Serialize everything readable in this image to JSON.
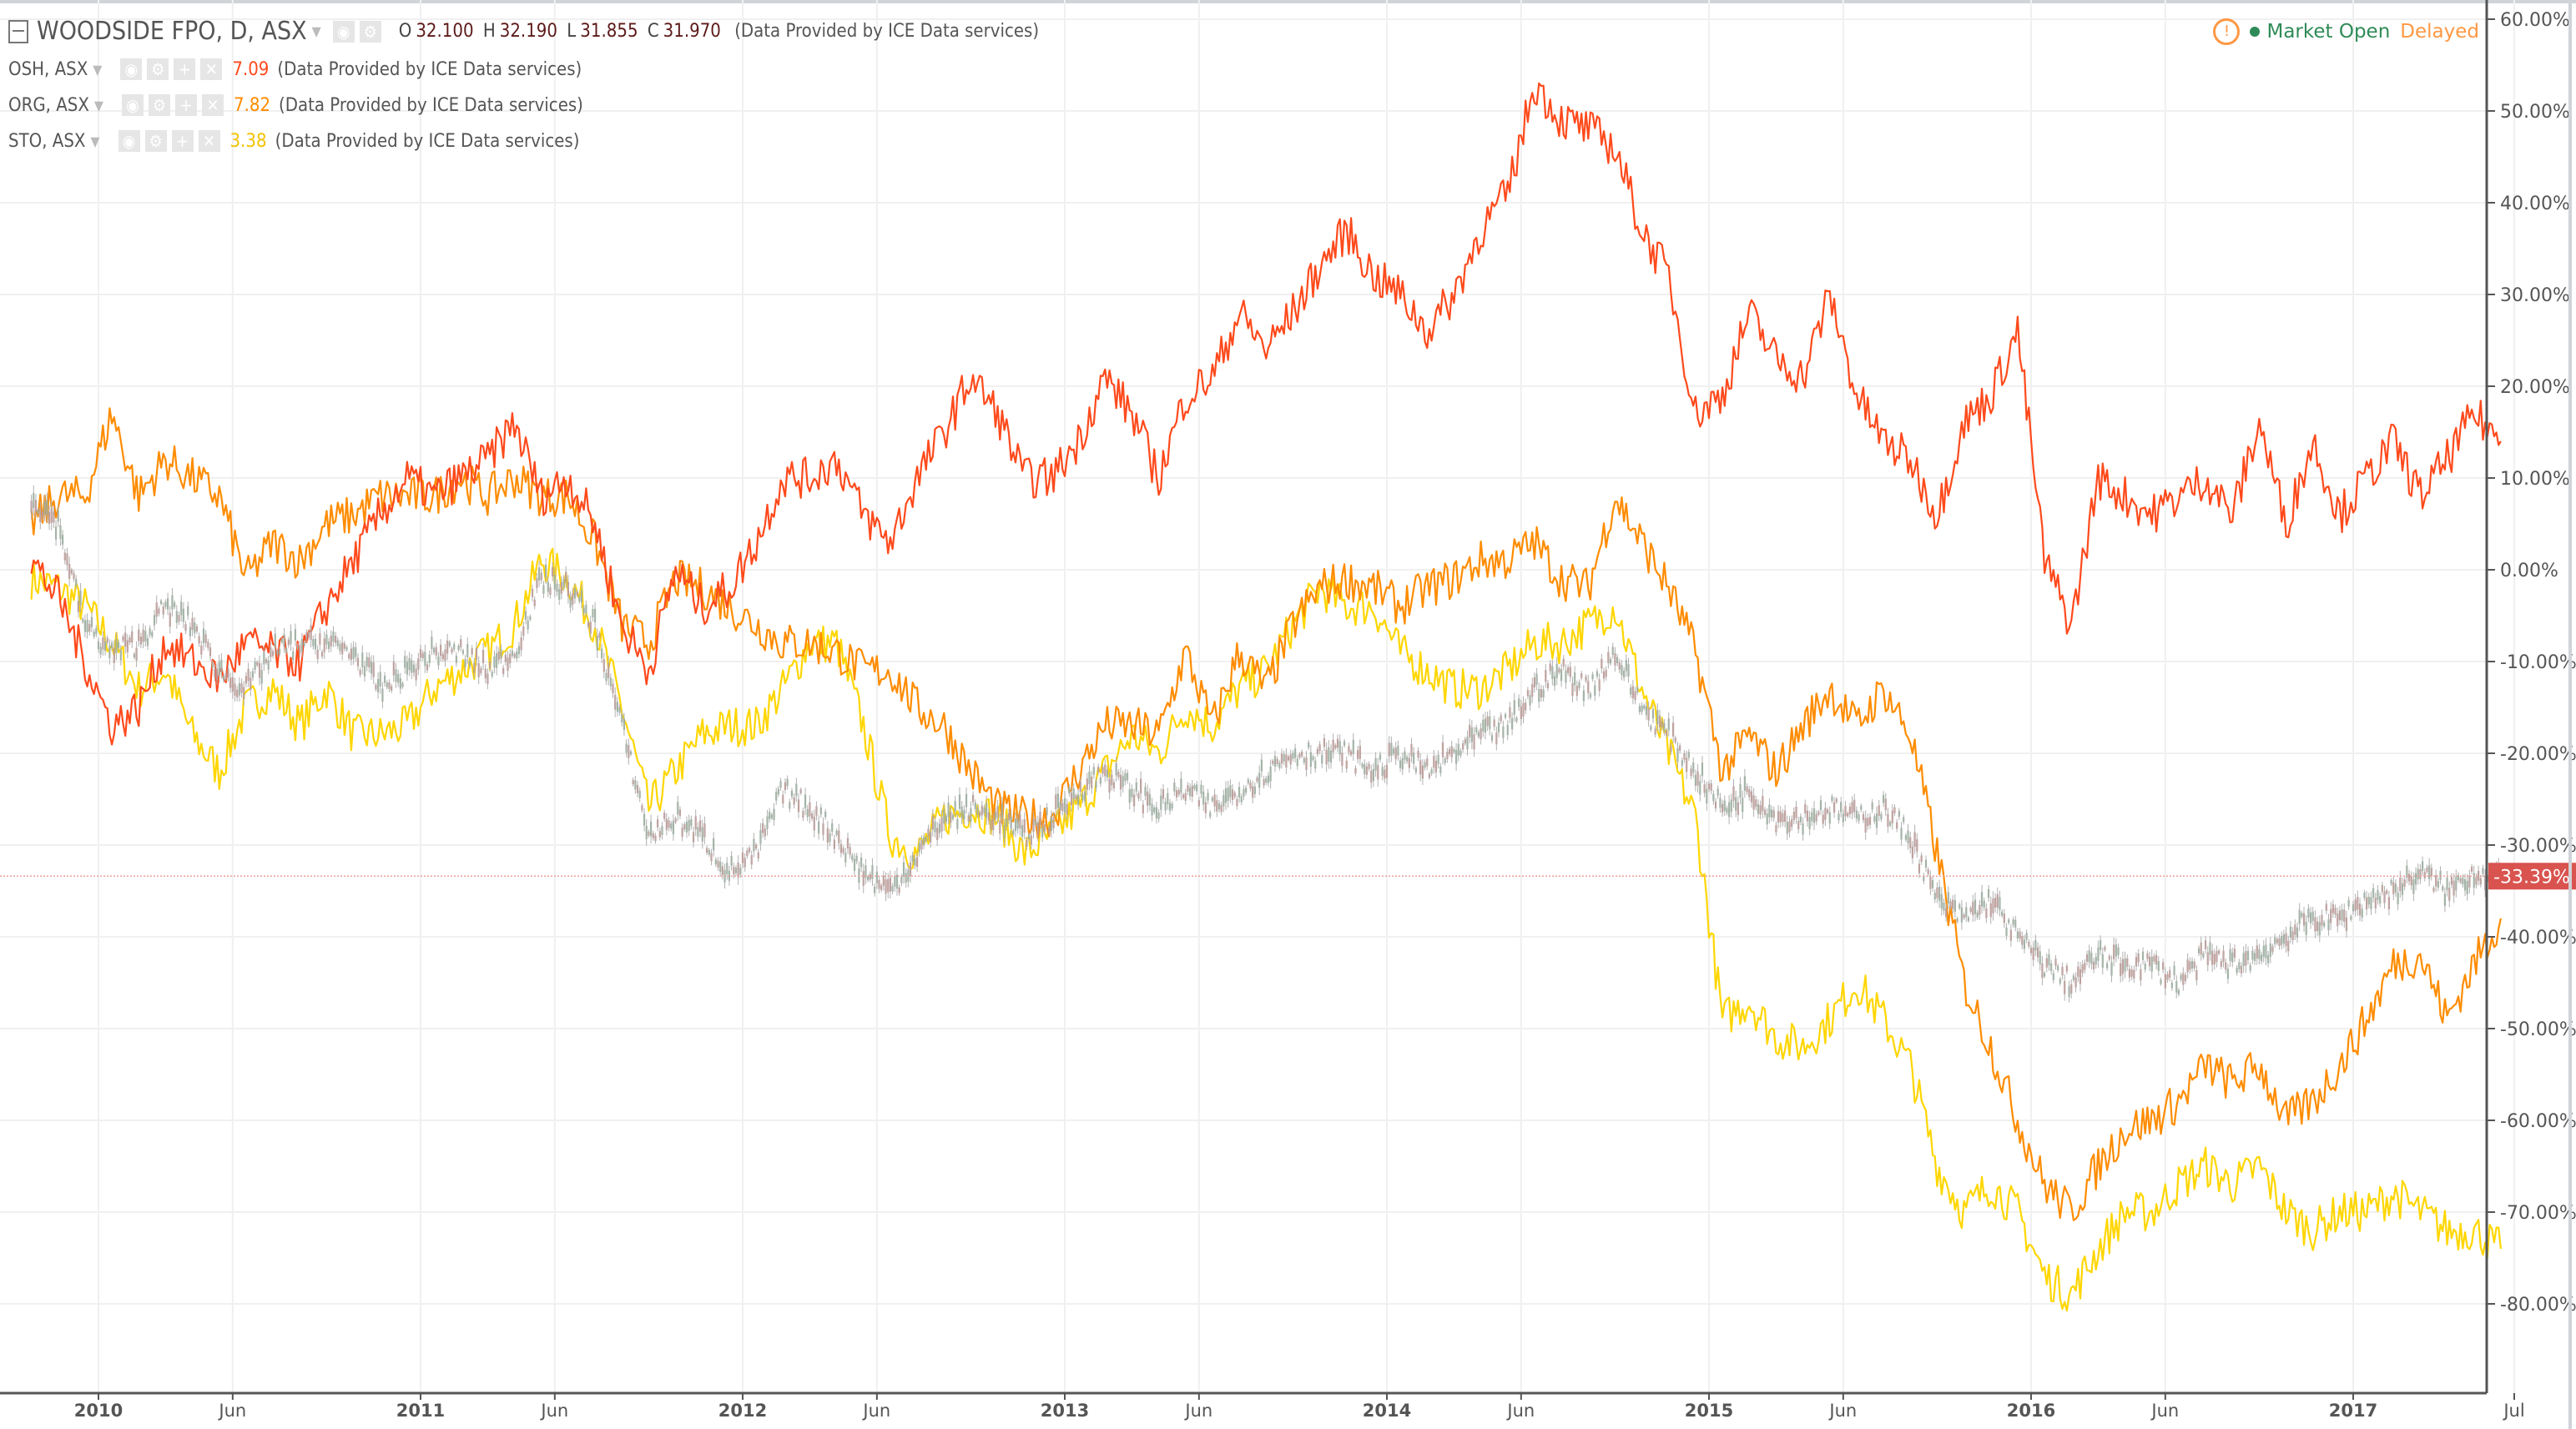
{
  "header": {
    "main": {
      "symbol": "WOODSIDE FPO, D, ASX",
      "open_label": "O",
      "open": "32.100",
      "high_label": "H",
      "high": "32.190",
      "low_label": "L",
      "low": "31.855",
      "close_label": "C",
      "close": "31.970",
      "source": "(Data Provided by ICE Data services)"
    },
    "compare": [
      {
        "symbol": "OSH, ASX",
        "value": "7.09",
        "source": "(Data Provided by ICE Data services)",
        "color": "#ff4a1c"
      },
      {
        "symbol": "ORG, ASX",
        "value": "7.82",
        "source": "(Data Provided by ICE Data services)",
        "color": "#ff8c00"
      },
      {
        "symbol": "STO, ASX",
        "value": "3.38",
        "source": "(Data Provided by ICE Data services)",
        "color": "#ffd600"
      }
    ],
    "status": {
      "market": "Market Open",
      "delay": "Delayed",
      "market_color": "#2e8b57",
      "delay_color": "#ff9843"
    }
  },
  "chart_data": {
    "type": "line",
    "y_unit": "%",
    "ylim": [
      -85,
      61
    ],
    "grid": true,
    "y_ticks": [
      "60.00%",
      "50.00%",
      "40.00%",
      "30.00%",
      "20.00%",
      "10.00%",
      "0.00%",
      "-10.00%",
      "-20.00%",
      "-30.00%",
      "-40.00%",
      "-50.00%",
      "-60.00%",
      "-70.00%",
      "-80.00%"
    ],
    "x_ticks": [
      {
        "label": "2010",
        "date": "2010-01"
      },
      {
        "label": "Jun",
        "date": "2010-06"
      },
      {
        "label": "2011",
        "date": "2011-01"
      },
      {
        "label": "Jun",
        "date": "2011-06"
      },
      {
        "label": "2012",
        "date": "2012-01"
      },
      {
        "label": "Jun",
        "date": "2012-06"
      },
      {
        "label": "2013",
        "date": "2013-01"
      },
      {
        "label": "Jun",
        "date": "2013-06"
      },
      {
        "label": "2014",
        "date": "2014-01"
      },
      {
        "label": "Jun",
        "date": "2014-06"
      },
      {
        "label": "2015",
        "date": "2015-01"
      },
      {
        "label": "Jun",
        "date": "2015-06"
      },
      {
        "label": "2016",
        "date": "2016-01"
      },
      {
        "label": "Jun",
        "date": "2016-06"
      },
      {
        "label": "2017",
        "date": "2017-01"
      },
      {
        "label": "Jul",
        "date": "2017-07"
      }
    ],
    "current_value_label": "-33.39%",
    "current_value": -33.39,
    "x": [
      "2009-10",
      "2009-11",
      "2009-12",
      "2010-01",
      "2010-02",
      "2010-03",
      "2010-04",
      "2010-05",
      "2010-06",
      "2010-07",
      "2010-08",
      "2010-09",
      "2010-10",
      "2010-11",
      "2010-12",
      "2011-01",
      "2011-02",
      "2011-03",
      "2011-04",
      "2011-05",
      "2011-06",
      "2011-07",
      "2011-08",
      "2011-09",
      "2011-10",
      "2011-11",
      "2011-12",
      "2012-01",
      "2012-02",
      "2012-03",
      "2012-04",
      "2012-05",
      "2012-06",
      "2012-07",
      "2012-08",
      "2012-09",
      "2012-10",
      "2012-11",
      "2012-12",
      "2013-01",
      "2013-02",
      "2013-03",
      "2013-04",
      "2013-05",
      "2013-06",
      "2013-07",
      "2013-08",
      "2013-09",
      "2013-10",
      "2013-11",
      "2013-12",
      "2014-01",
      "2014-02",
      "2014-03",
      "2014-04",
      "2014-05",
      "2014-06",
      "2014-07",
      "2014-08",
      "2014-09",
      "2014-10",
      "2014-11",
      "2014-12",
      "2015-01",
      "2015-02",
      "2015-03",
      "2015-04",
      "2015-05",
      "2015-06",
      "2015-07",
      "2015-08",
      "2015-09",
      "2015-10",
      "2015-11",
      "2015-12",
      "2016-01",
      "2016-02",
      "2016-03",
      "2016-04",
      "2016-05",
      "2016-06",
      "2016-07",
      "2016-08",
      "2016-09",
      "2016-10",
      "2016-11",
      "2016-12",
      "2017-01",
      "2017-02",
      "2017-03",
      "2017-04",
      "2017-05",
      "2017-06"
    ],
    "series": [
      {
        "name": "WOODSIDE FPO, D, ASX",
        "style": "candles",
        "color": "#9e9e9e",
        "values": [
          8,
          5,
          -6,
          -9,
          -8,
          -4,
          -6,
          -11,
          -13,
          -9,
          -8,
          -8,
          -9,
          -13,
          -11,
          -9,
          -9,
          -11,
          -9,
          -1,
          -2,
          -6,
          -17,
          -29,
          -27,
          -29,
          -33,
          -31,
          -24,
          -26,
          -29,
          -33,
          -35,
          -31,
          -27,
          -26,
          -27,
          -29,
          -27,
          -24,
          -22,
          -24,
          -26,
          -24,
          -26,
          -24,
          -22,
          -20,
          -20,
          -20,
          -22,
          -20,
          -22,
          -20,
          -18,
          -17,
          -13,
          -11,
          -13,
          -9,
          -15,
          -18,
          -22,
          -26,
          -24,
          -27,
          -27,
          -26,
          -27,
          -26,
          -29,
          -36,
          -38,
          -36,
          -40,
          -43,
          -45,
          -42,
          -43,
          -43,
          -45,
          -42,
          -43,
          -42,
          -40,
          -38,
          -38,
          -36,
          -35,
          -33,
          -35,
          -33,
          -33.39
        ]
      },
      {
        "name": "OSH, ASX",
        "color": "#ff4a1c",
        "values": [
          1,
          -3,
          -10,
          -17,
          -15,
          -8,
          -10,
          -12,
          -8,
          -9,
          -10,
          -4,
          1,
          6,
          10,
          8,
          10,
          12,
          16,
          8,
          10,
          5,
          -6,
          -11,
          0,
          -4,
          -2,
          3,
          10,
          10,
          12,
          6,
          3,
          10,
          15,
          21,
          17,
          10,
          10,
          14,
          21,
          17,
          10,
          19,
          21,
          28,
          24,
          28,
          33,
          37,
          32,
          30,
          26,
          30,
          37,
          41,
          53,
          49,
          48,
          46,
          37,
          32,
          17,
          19,
          28,
          23,
          21,
          30,
          19,
          14,
          12,
          6,
          16,
          19,
          26,
          1,
          -6,
          10,
          8,
          6,
          8,
          10,
          6,
          16,
          5,
          14,
          6,
          10,
          14,
          8,
          12,
          17,
          14
        ]
      },
      {
        "name": "ORG, ASX",
        "color": "#ff8c00",
        "values": [
          5,
          8,
          8,
          17,
          8,
          12,
          10,
          8,
          -1,
          3,
          1,
          5,
          6,
          8,
          8,
          8,
          10,
          8,
          10,
          8,
          8,
          3,
          -6,
          -8,
          -1,
          -2,
          -4,
          -6,
          -8,
          -8,
          -9,
          -11,
          -11,
          -15,
          -17,
          -22,
          -26,
          -27,
          -27,
          -22,
          -17,
          -17,
          -18,
          -9,
          -17,
          -9,
          -13,
          -6,
          -2,
          -1,
          -2,
          -4,
          -2,
          -1,
          1,
          1,
          3,
          -1,
          -2,
          8,
          3,
          -2,
          -9,
          -22,
          -18,
          -22,
          -17,
          -13,
          -17,
          -13,
          -18,
          -31,
          -45,
          -52,
          -60,
          -67,
          -70,
          -65,
          -61,
          -60,
          -58,
          -54,
          -56,
          -54,
          -60,
          -58,
          -54,
          -49,
          -43,
          -42,
          -49,
          -43,
          -38
        ]
      },
      {
        "name": "STO, ASX",
        "color": "#ffd600",
        "values": [
          -1,
          -2,
          -4,
          -8,
          -13,
          -11,
          -18,
          -22,
          -15,
          -13,
          -17,
          -13,
          -18,
          -18,
          -17,
          -13,
          -11,
          -9,
          -6,
          1,
          -1,
          -6,
          -15,
          -26,
          -22,
          -18,
          -17,
          -17,
          -13,
          -8,
          -8,
          -17,
          -29,
          -31,
          -27,
          -26,
          -27,
          -31,
          -29,
          -26,
          -22,
          -18,
          -20,
          -15,
          -17,
          -13,
          -11,
          -6,
          -2,
          -4,
          -4,
          -9,
          -11,
          -13,
          -13,
          -11,
          -8,
          -8,
          -6,
          -4,
          -13,
          -20,
          -27,
          -49,
          -47,
          -51,
          -52,
          -49,
          -45,
          -49,
          -54,
          -65,
          -70,
          -67,
          -70,
          -77,
          -79,
          -74,
          -70,
          -70,
          -67,
          -65,
          -67,
          -65,
          -70,
          -72,
          -70,
          -70,
          -68,
          -70,
          -72,
          -72,
          -74
        ]
      }
    ]
  }
}
